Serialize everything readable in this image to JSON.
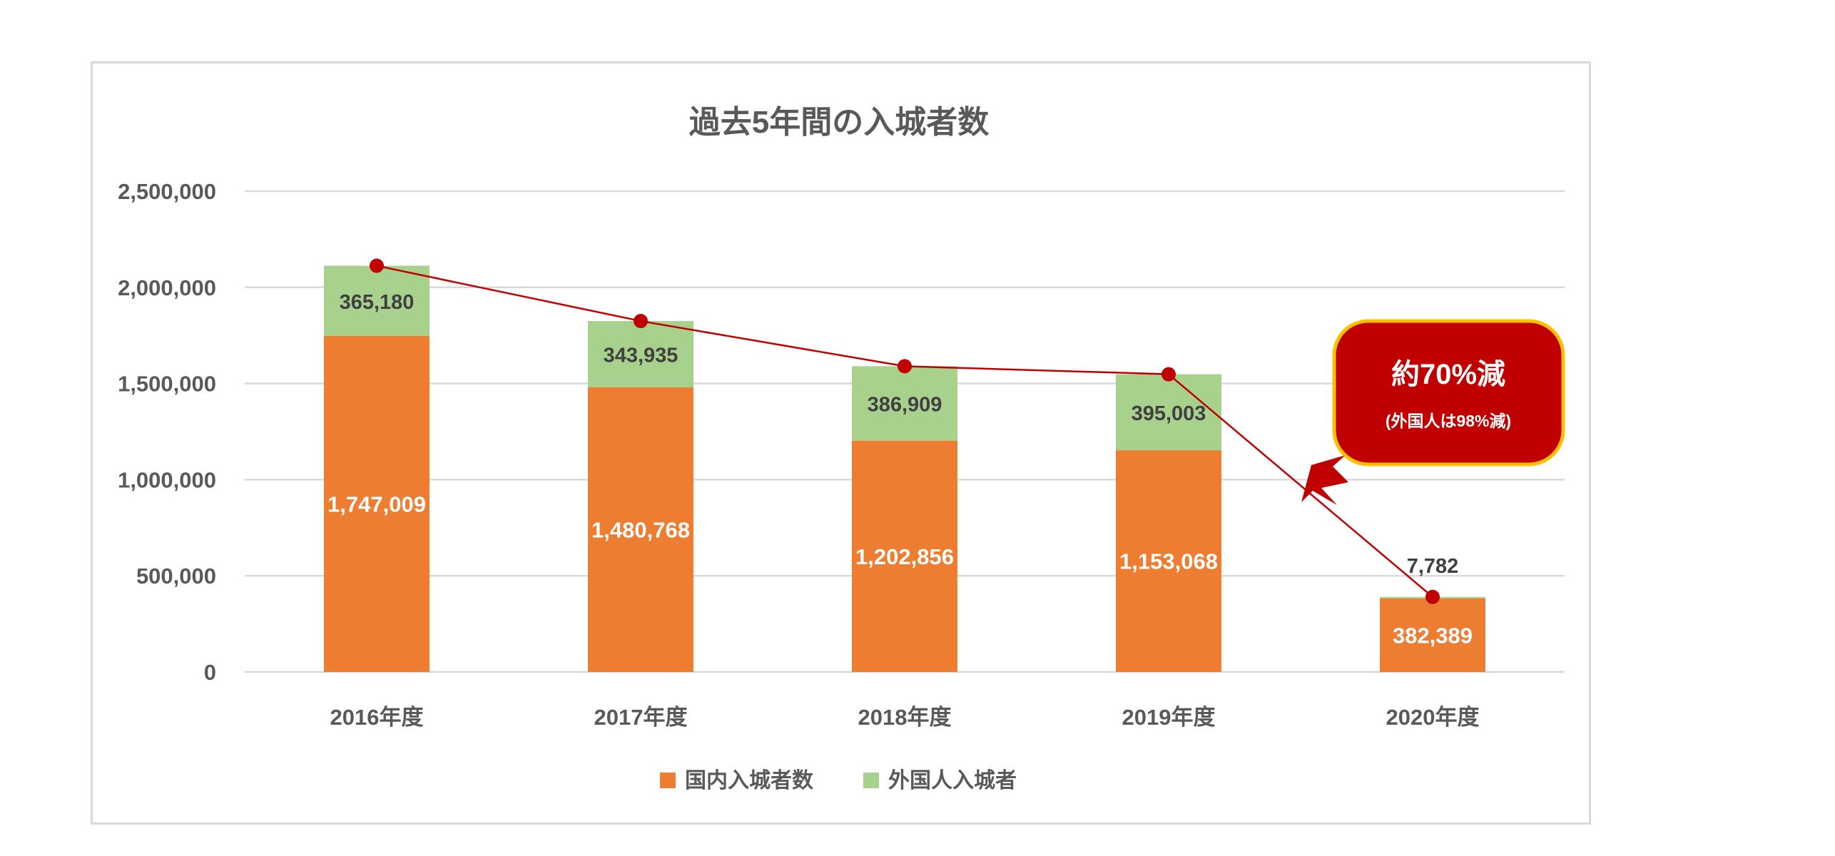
{
  "colors": {
    "domestic": "#ED7D31",
    "foreign": "#A9D18E",
    "line": "#C00000",
    "grid": "#d9d9d9",
    "axis_text": "#595959",
    "callout_fill": "#C00000",
    "callout_border": "#FFC000"
  },
  "chart_data": {
    "type": "bar",
    "stacked": true,
    "title": "過去5年間の入城者数",
    "categories": [
      "2016年度",
      "2017年度",
      "2018年度",
      "2019年度",
      "2020年度"
    ],
    "series": [
      {
        "name": "国内入城者数",
        "values": [
          1747009,
          1480768,
          1202856,
          1153068,
          382389
        ]
      },
      {
        "name": "外国人入城者",
        "values": [
          365180,
          343935,
          386909,
          395003,
          7782
        ]
      }
    ],
    "data_labels": {
      "domestic": [
        "1,747,009",
        "1,480,768",
        "1,202,856",
        "1,153,068",
        "382,389"
      ],
      "foreign": [
        "365,180",
        "343,935",
        "386,909",
        "395,003",
        "7,782"
      ]
    },
    "trend_line": {
      "type": "line",
      "values": [
        2112189,
        1824703,
        1589765,
        1548071,
        390171
      ],
      "marker": "circle"
    },
    "ylim": [
      0,
      2500000
    ],
    "y_ticks": [
      0,
      500000,
      1000000,
      1500000,
      2000000,
      2500000
    ],
    "y_tick_labels": [
      "0",
      "500,000",
      "1,000,000",
      "1,500,000",
      "2,000,000",
      "2,500,000"
    ],
    "grid": true,
    "legend_position": "bottom",
    "annotation": {
      "main": "約70%減",
      "sub": "(外国人は98%減)"
    }
  }
}
